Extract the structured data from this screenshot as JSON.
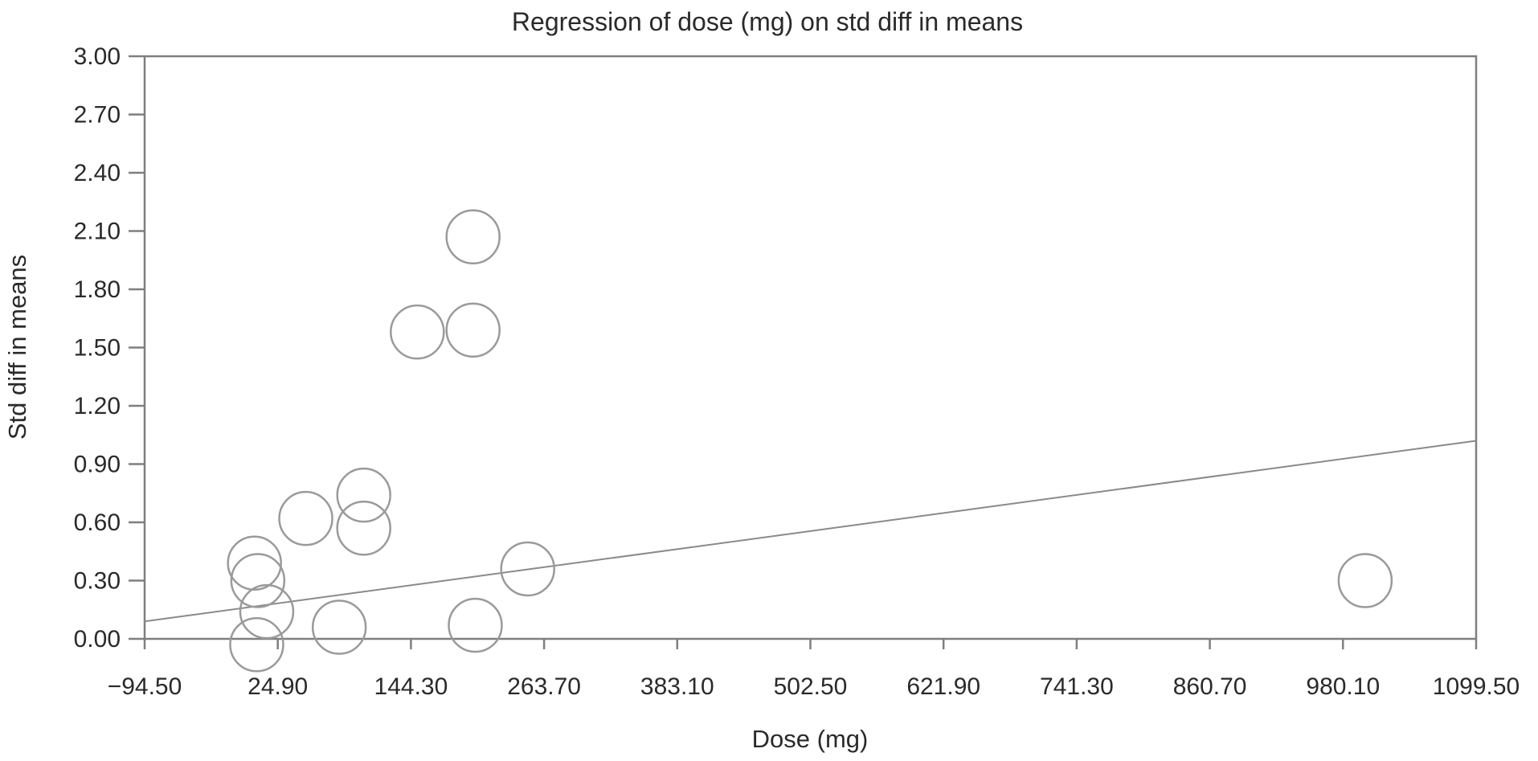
{
  "page": {
    "background": "#ffffff"
  },
  "colors": {
    "axis": "#7f7f7f",
    "text": "#2a2a2a",
    "marker_stroke": "#9a9a9a",
    "regression_line": "#8a8a8a"
  },
  "chart_data": {
    "type": "scatter",
    "title": "Regression of dose (mg) on std diff in means",
    "xlabel": "Dose (mg)",
    "ylabel": "Std diff in means",
    "xlim": [
      -94.5,
      1099.5
    ],
    "ylim": [
      0.0,
      3.0
    ],
    "grid": false,
    "marker_radius_px": 33,
    "x_ticks": [
      {
        "value": -94.5,
        "label": "−94.50"
      },
      {
        "value": 24.9,
        "label": "24.90"
      },
      {
        "value": 144.3,
        "label": "144.30"
      },
      {
        "value": 263.7,
        "label": "263.70"
      },
      {
        "value": 383.1,
        "label": "383.10"
      },
      {
        "value": 502.5,
        "label": "502.50"
      },
      {
        "value": 621.9,
        "label": "621.90"
      },
      {
        "value": 741.3,
        "label": "741.30"
      },
      {
        "value": 860.7,
        "label": "860.70"
      },
      {
        "value": 980.1,
        "label": "980.10"
      },
      {
        "value": 1099.5,
        "label": "1099.50"
      }
    ],
    "y_ticks": [
      {
        "value": 3.0,
        "label": "3.00"
      },
      {
        "value": 2.7,
        "label": "2.70"
      },
      {
        "value": 2.4,
        "label": "2.40"
      },
      {
        "value": 2.1,
        "label": "2.10"
      },
      {
        "value": 1.8,
        "label": "1.80"
      },
      {
        "value": 1.5,
        "label": "1.50"
      },
      {
        "value": 1.2,
        "label": "1.20"
      },
      {
        "value": 0.9,
        "label": "0.90"
      },
      {
        "value": 0.6,
        "label": "0.60"
      },
      {
        "value": 0.3,
        "label": "0.30"
      },
      {
        "value": 0.0,
        "label": "0.00"
      }
    ],
    "points": [
      {
        "dose": 4,
        "std_diff": 0.39
      },
      {
        "dose": 7,
        "std_diff": 0.3
      },
      {
        "dose": 15,
        "std_diff": 0.14
      },
      {
        "dose": 6,
        "std_diff": -0.03
      },
      {
        "dose": 50,
        "std_diff": 0.62
      },
      {
        "dose": 102,
        "std_diff": 0.74
      },
      {
        "dose": 102,
        "std_diff": 0.57
      },
      {
        "dose": 80,
        "std_diff": 0.06
      },
      {
        "dose": 150,
        "std_diff": 1.58
      },
      {
        "dose": 200,
        "std_diff": 2.07
      },
      {
        "dose": 200,
        "std_diff": 1.59
      },
      {
        "dose": 202,
        "std_diff": 0.07
      },
      {
        "dose": 249,
        "std_diff": 0.36
      },
      {
        "dose": 1000,
        "std_diff": 0.3
      }
    ],
    "regression_line": {
      "x1": -94.5,
      "y1": 0.09,
      "x2": 1099.5,
      "y2": 1.02
    }
  }
}
